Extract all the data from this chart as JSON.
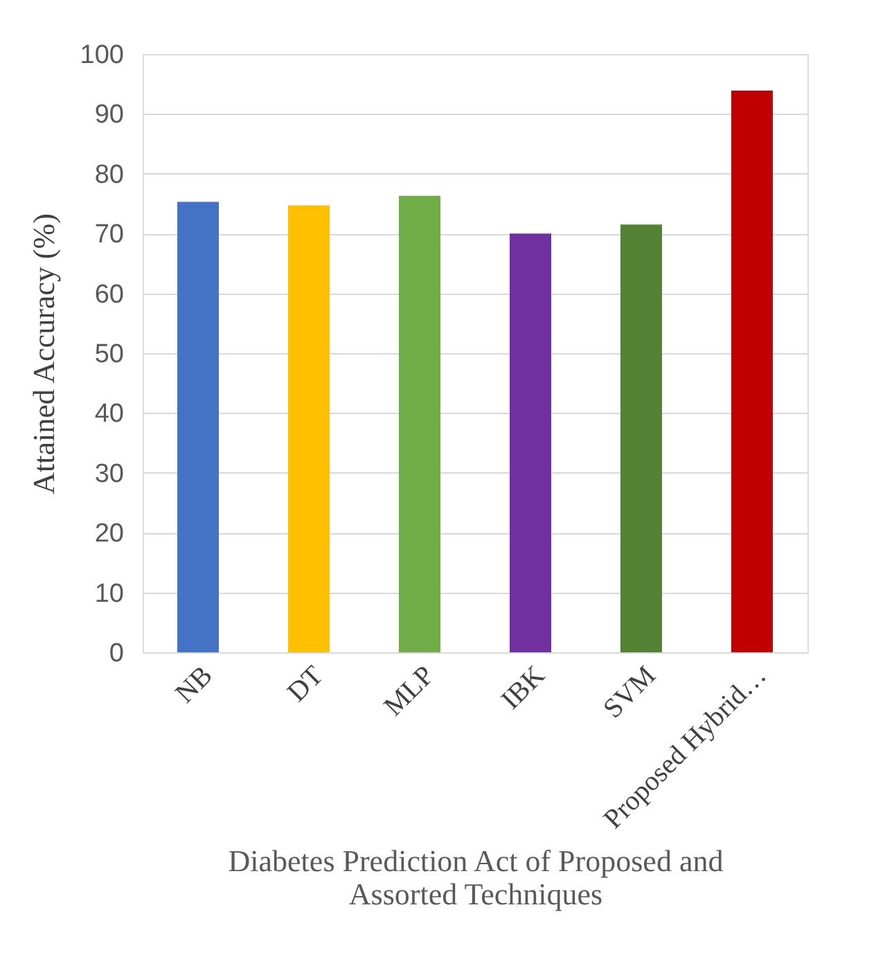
{
  "chart_data": {
    "type": "bar",
    "categories": [
      "NB",
      "DT",
      "MLP",
      "IBK",
      "SVM",
      "Proposed Hybrid…"
    ],
    "values": [
      75.3,
      74.7,
      76.3,
      70.0,
      71.5,
      93.9
    ],
    "colors": [
      "#4472c4",
      "#ffc000",
      "#70ad47",
      "#7030a0",
      "#548235",
      "#c00000"
    ],
    "xlabel": "Diabetes Prediction Act of Proposed and Assorted Techniques",
    "ylabel": "Attained Accuracy (%)",
    "ylim": [
      0,
      100
    ],
    "yticks": [
      0,
      10,
      20,
      30,
      40,
      50,
      60,
      70,
      80,
      90,
      100
    ],
    "grid": "y"
  }
}
